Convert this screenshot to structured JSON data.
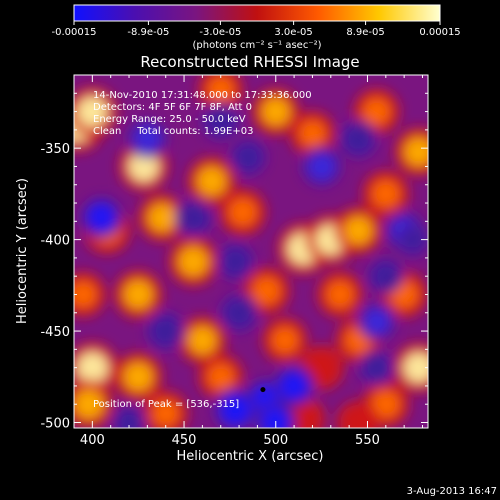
{
  "chart_data": {
    "type": "heatmap",
    "title": "Reconstructed RHESSI Image",
    "xlabel": "Heliocentric X (arcsec)",
    "ylabel": "Heliocentric Y (arcsec)",
    "xlim": [
      390,
      583
    ],
    "ylim": [
      -503,
      -310
    ],
    "x_ticks": [
      "400",
      "450",
      "500",
      "550"
    ],
    "y_ticks": [
      "-350",
      "-400",
      "-450",
      "-500"
    ],
    "x_tick_values": [
      400,
      450,
      500,
      550
    ],
    "y_tick_values": [
      -350,
      -400,
      -450,
      -500
    ],
    "colorbar": {
      "range": [
        -0.00015,
        0.00015
      ],
      "tick_labels": [
        "-0.00015",
        "-8.9e-05",
        "-3.0e-05",
        "3.0e-05",
        "8.9e-05",
        "0.00015"
      ],
      "tick_values": [
        -0.00015,
        -8.9e-05,
        -3e-05,
        3e-05,
        8.9e-05,
        0.00015
      ],
      "units_label": "(photons cm⁻² s⁻¹ asec⁻²)",
      "colors": [
        "#1010ff",
        "#4b0fb0",
        "#7a1580",
        "#c01010",
        "#ff5a00",
        "#ffc800",
        "#ffffd0"
      ]
    },
    "annotations": {
      "time_range": "14-Nov-2010 17:31:48.000 to 17:33:36.000",
      "detectors": "Detectors: 4F 5F 6F 7F 8F, Att 0",
      "energy_range": "Energy Range: 25.0 - 50.0 keV",
      "method_counts": "Clean     Total counts: 1.99E+03",
      "peak": "Position of Peak = [536,-315]"
    },
    "peak_position": [
      536,
      -315
    ],
    "hotspots": [
      {
        "x": 392,
        "y": -338,
        "v": 1.0
      },
      {
        "x": 400,
        "y": -330,
        "v": 0.9
      },
      {
        "x": 428,
        "y": -360,
        "v": 0.9
      },
      {
        "x": 438,
        "y": -388,
        "v": 0.75
      },
      {
        "x": 465,
        "y": -368,
        "v": 0.8
      },
      {
        "x": 482,
        "y": -385,
        "v": 0.7
      },
      {
        "x": 515,
        "y": -405,
        "v": 1.0
      },
      {
        "x": 530,
        "y": -400,
        "v": 0.9
      },
      {
        "x": 545,
        "y": -395,
        "v": 0.75
      },
      {
        "x": 560,
        "y": -375,
        "v": 0.7
      },
      {
        "x": 578,
        "y": -352,
        "v": 0.8
      },
      {
        "x": 555,
        "y": -330,
        "v": 0.65
      },
      {
        "x": 500,
        "y": -330,
        "v": 0.75
      },
      {
        "x": 470,
        "y": -318,
        "v": 0.6
      },
      {
        "x": 520,
        "y": -342,
        "v": 0.6
      },
      {
        "x": 408,
        "y": -395,
        "v": 0.7
      },
      {
        "x": 455,
        "y": -412,
        "v": 0.85
      },
      {
        "x": 495,
        "y": -428,
        "v": 0.7
      },
      {
        "x": 425,
        "y": -430,
        "v": 0.8
      },
      {
        "x": 395,
        "y": -430,
        "v": 0.6
      },
      {
        "x": 400,
        "y": -470,
        "v": 0.95
      },
      {
        "x": 398,
        "y": -490,
        "v": 0.85
      },
      {
        "x": 425,
        "y": -475,
        "v": 0.8
      },
      {
        "x": 440,
        "y": -495,
        "v": 0.6
      },
      {
        "x": 460,
        "y": -455,
        "v": 0.75
      },
      {
        "x": 470,
        "y": -475,
        "v": 0.6
      },
      {
        "x": 505,
        "y": -455,
        "v": 0.6
      },
      {
        "x": 535,
        "y": -430,
        "v": 0.65
      },
      {
        "x": 570,
        "y": -430,
        "v": 0.7
      },
      {
        "x": 578,
        "y": -470,
        "v": 0.9
      },
      {
        "x": 560,
        "y": -490,
        "v": 0.7
      },
      {
        "x": 525,
        "y": -470,
        "v": 0.55
      },
      {
        "x": 545,
        "y": -455,
        "v": 0.6
      },
      {
        "x": 545,
        "y": -500,
        "v": 0.5
      },
      {
        "x": 515,
        "y": -498,
        "v": 0.5
      }
    ],
    "coldspots": [
      {
        "x": 430,
        "y": -345,
        "v": 0.8
      },
      {
        "x": 405,
        "y": -388,
        "v": 0.9
      },
      {
        "x": 455,
        "y": -388,
        "v": 0.7
      },
      {
        "x": 485,
        "y": -355,
        "v": 0.6
      },
      {
        "x": 470,
        "y": -335,
        "v": 0.7
      },
      {
        "x": 525,
        "y": -360,
        "v": 0.8
      },
      {
        "x": 545,
        "y": -345,
        "v": 0.7
      },
      {
        "x": 570,
        "y": -395,
        "v": 0.75
      },
      {
        "x": 478,
        "y": -412,
        "v": 0.65
      },
      {
        "x": 440,
        "y": -450,
        "v": 0.7
      },
      {
        "x": 480,
        "y": -440,
        "v": 0.7
      },
      {
        "x": 560,
        "y": -420,
        "v": 0.6
      },
      {
        "x": 555,
        "y": -445,
        "v": 0.75
      },
      {
        "x": 575,
        "y": -400,
        "v": 0.5
      },
      {
        "x": 495,
        "y": -488,
        "v": 1.0
      },
      {
        "x": 478,
        "y": -493,
        "v": 1.0
      },
      {
        "x": 510,
        "y": -480,
        "v": 0.9
      },
      {
        "x": 500,
        "y": -500,
        "v": 0.9
      },
      {
        "x": 555,
        "y": -470,
        "v": 0.6
      },
      {
        "x": 420,
        "y": -500,
        "v": 0.5
      }
    ],
    "grid": false,
    "legend": "none"
  },
  "footer": {
    "date": "3-Aug-2013 16:47"
  }
}
